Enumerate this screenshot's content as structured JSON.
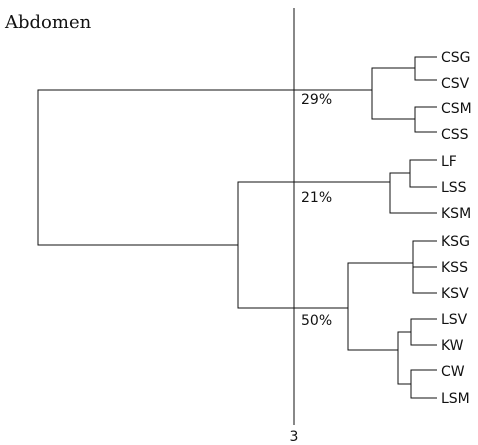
{
  "title": "Abdomen",
  "leaves": [
    "CSG",
    "CSV",
    "CSM",
    "CSS",
    "LF",
    "LSS",
    "KSM",
    "KSG",
    "KSS",
    "KSV",
    "LSV",
    "KW",
    "CW",
    "LSM"
  ],
  "cluster_labels": [
    {
      "id": "cluster-29",
      "text": "29%"
    },
    {
      "id": "cluster-21",
      "text": "21%"
    },
    {
      "id": "cluster-50",
      "text": "50%"
    }
  ],
  "cut_axis_label": "3"
}
